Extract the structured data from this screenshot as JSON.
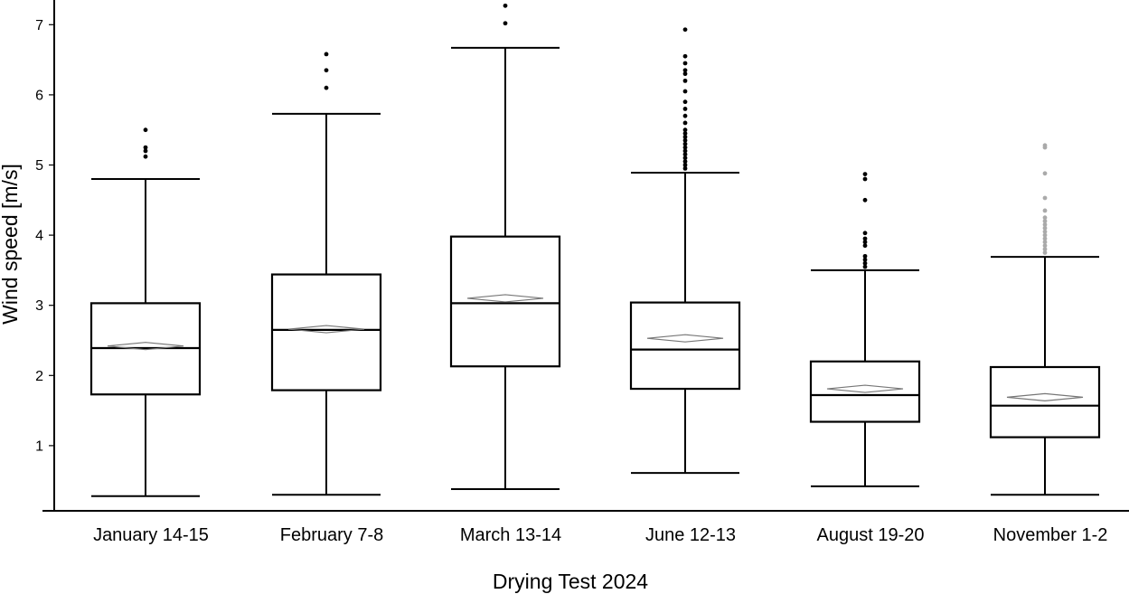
{
  "chart_data": {
    "type": "box",
    "xlabel": "Drying Test 2024",
    "ylabel": "Wind speed [m/s]",
    "ylim": [
      0,
      7.3
    ],
    "yticks": [
      1,
      2,
      3,
      4,
      5,
      6,
      7
    ],
    "grid": false,
    "legend": "none",
    "categories": [
      "January 14-15",
      "February 7-8",
      "March 13-14",
      "June 12-13",
      "August 19-20",
      "November 1-2"
    ],
    "boxes": [
      {
        "label": "January 14-15",
        "whisker_low": 0.28,
        "q1": 1.73,
        "median": 2.39,
        "mean": 2.42,
        "q3": 3.03,
        "whisker_high": 4.8,
        "outliers": [
          5.12,
          5.2,
          5.25,
          5.5
        ],
        "outlier_color": "#000000"
      },
      {
        "label": "February 7-8",
        "whisker_low": 0.3,
        "q1": 1.79,
        "median": 2.65,
        "mean": 2.66,
        "q3": 3.44,
        "whisker_high": 5.73,
        "outliers": [
          6.1,
          6.35,
          6.58
        ],
        "outlier_color": "#000000"
      },
      {
        "label": "March 13-14",
        "whisker_low": 0.38,
        "q1": 2.13,
        "median": 3.03,
        "mean": 3.1,
        "q3": 3.98,
        "whisker_high": 6.67,
        "outliers": [
          7.02,
          7.27
        ],
        "outlier_color": "#000000"
      },
      {
        "label": "June 12-13",
        "whisker_low": 0.61,
        "q1": 1.81,
        "median": 2.37,
        "mean": 2.53,
        "q3": 3.04,
        "whisker_high": 4.89,
        "outliers": [
          4.95,
          5.0,
          5.05,
          5.1,
          5.15,
          5.2,
          5.25,
          5.3,
          5.35,
          5.4,
          5.45,
          5.5,
          5.6,
          5.7,
          5.8,
          5.9,
          6.05,
          6.2,
          6.3,
          6.35,
          6.45,
          6.55,
          6.93
        ],
        "outlier_color": "#000000"
      },
      {
        "label": "August 19-20",
        "whisker_low": 0.42,
        "q1": 1.34,
        "median": 1.72,
        "mean": 1.81,
        "q3": 2.2,
        "whisker_high": 3.5,
        "outliers": [
          3.55,
          3.6,
          3.65,
          3.7,
          3.85,
          3.9,
          3.95,
          4.03,
          4.5,
          4.8,
          4.87
        ],
        "outlier_color": "#000000"
      },
      {
        "label": "November 1-2",
        "whisker_low": 0.3,
        "q1": 1.12,
        "median": 1.57,
        "mean": 1.69,
        "q3": 2.12,
        "whisker_high": 3.69,
        "outliers": [
          3.75,
          3.8,
          3.85,
          3.9,
          3.95,
          4.0,
          4.05,
          4.1,
          4.15,
          4.2,
          4.25,
          4.35,
          4.53,
          4.88,
          5.25,
          5.28
        ],
        "outlier_color": "#aaaaaa"
      }
    ]
  }
}
